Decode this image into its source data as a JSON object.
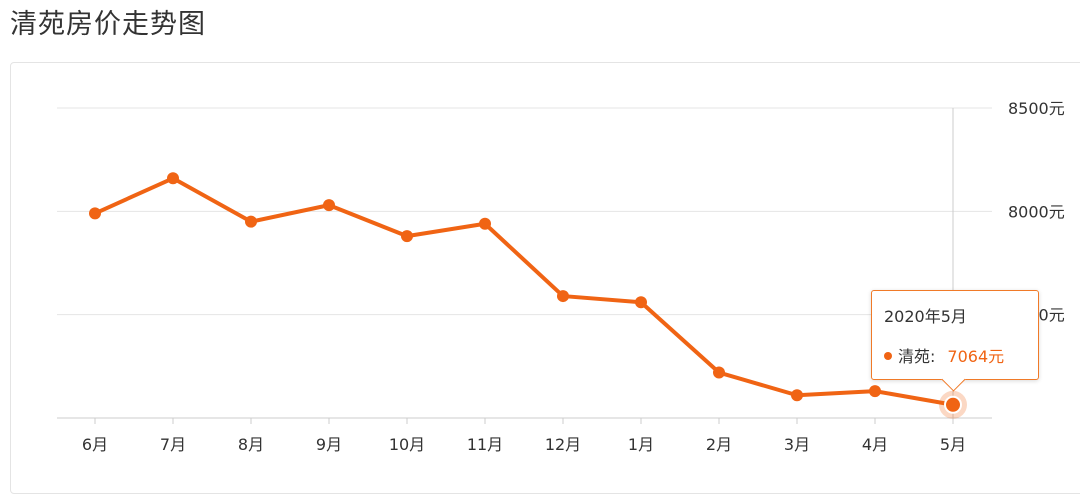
{
  "page": {
    "title": "清苑房价走势图"
  },
  "tooltip": {
    "title": "2020年5月",
    "series_label": "清苑:",
    "value_text": "7064元"
  },
  "colors": {
    "line": "#f06414",
    "grid": "#e5e5e5",
    "axis": "#cccccc",
    "text": "#333333"
  },
  "chart_data": {
    "type": "line",
    "title": "清苑房价走势图",
    "categories": [
      "6月",
      "7月",
      "8月",
      "9月",
      "10月",
      "11月",
      "12月",
      "1月",
      "2月",
      "3月",
      "4月",
      "5月"
    ],
    "series": [
      {
        "name": "清苑",
        "values": [
          7990,
          8160,
          7950,
          8030,
          7880,
          7940,
          7590,
          7560,
          7220,
          7110,
          7130,
          7064
        ]
      }
    ],
    "ylim": [
      7000,
      8500
    ],
    "yticks": [
      {
        "value": 8500,
        "label": "8500元"
      },
      {
        "value": 8000,
        "label": "8000元"
      },
      {
        "value": 7500,
        "label": "7500元"
      },
      {
        "value": 7000,
        "label": ""
      }
    ],
    "highlight_index": 11,
    "grid": true,
    "legend": "none"
  }
}
